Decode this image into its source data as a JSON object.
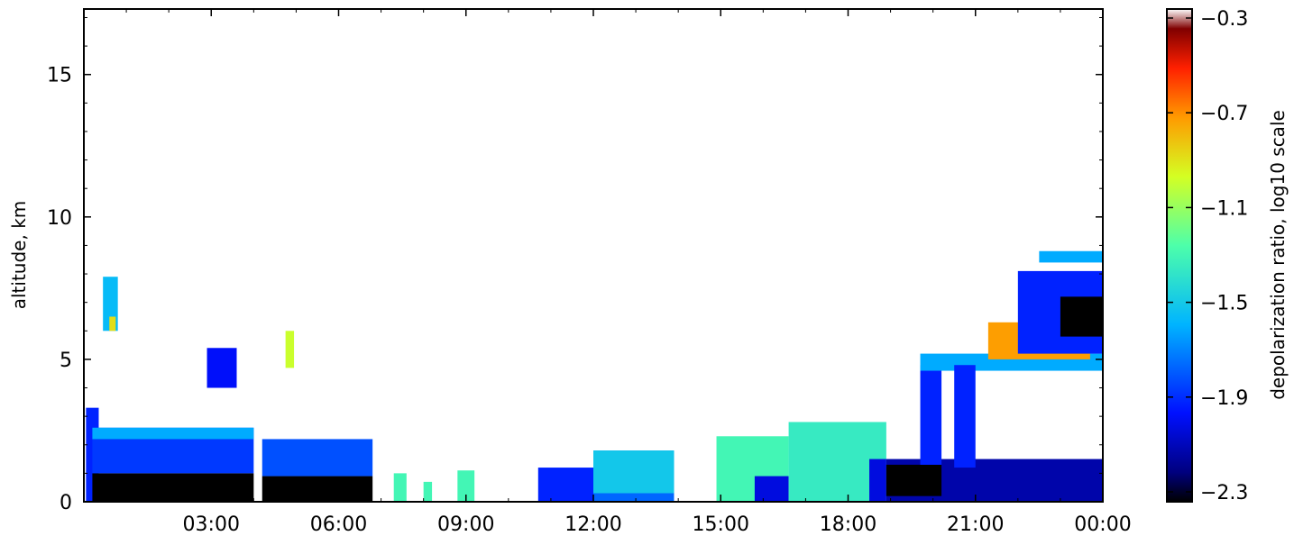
{
  "chart_data": {
    "type": "heatmap",
    "title": "",
    "ylabel": "altitude, km",
    "xlabel": "",
    "xlim": [
      0,
      24
    ],
    "ylim": [
      0,
      17.3
    ],
    "x_ticks": [
      {
        "value": 3,
        "label": "03:00"
      },
      {
        "value": 6,
        "label": "06:00"
      },
      {
        "value": 9,
        "label": "09:00"
      },
      {
        "value": 12,
        "label": "12:00"
      },
      {
        "value": 15,
        "label": "15:00"
      },
      {
        "value": 18,
        "label": "18:00"
      },
      {
        "value": 21,
        "label": "21:00"
      },
      {
        "value": 24,
        "label": "00:00"
      }
    ],
    "y_ticks": [
      {
        "value": 0,
        "label": "0"
      },
      {
        "value": 5,
        "label": "5"
      },
      {
        "value": 10,
        "label": "10"
      },
      {
        "value": 15,
        "label": "15"
      }
    ],
    "colorbar": {
      "label": "depolarization ratio, log10 scale",
      "range": [
        -2.3,
        -0.3
      ],
      "ticks": [
        {
          "value": -0.3,
          "label": "−0.3"
        },
        {
          "value": -0.7,
          "label": "−0.7"
        },
        {
          "value": -1.1,
          "label": "−1.1"
        },
        {
          "value": -1.5,
          "label": "−1.5"
        },
        {
          "value": -1.9,
          "label": "−1.9"
        },
        {
          "value": -2.3,
          "label": "−2.3"
        }
      ],
      "colormap": "jet"
    },
    "grid": false,
    "regions": [
      {
        "x0": 0.05,
        "x1": 0.35,
        "y0": 0,
        "y1": 3.3,
        "v": -1.9
      },
      {
        "x0": 0.2,
        "x1": 4.0,
        "y0": 0,
        "y1": 1.0,
        "v": -2.3
      },
      {
        "x0": 0.2,
        "x1": 4.0,
        "y0": 1.0,
        "y1": 2.6,
        "v": -1.85
      },
      {
        "x0": 0.2,
        "x1": 4.0,
        "y0": 2.2,
        "y1": 2.6,
        "v": -1.6
      },
      {
        "x0": 0.45,
        "x1": 0.8,
        "y0": 6.0,
        "y1": 7.9,
        "v": -1.55
      },
      {
        "x0": 0.6,
        "x1": 0.75,
        "y0": 6.0,
        "y1": 6.5,
        "v": -0.9
      },
      {
        "x0": 2.9,
        "x1": 3.6,
        "y0": 4.0,
        "y1": 5.4,
        "v": -1.95
      },
      {
        "x0": 4.2,
        "x1": 6.8,
        "y0": 0,
        "y1": 0.9,
        "v": -2.3
      },
      {
        "x0": 4.2,
        "x1": 6.8,
        "y0": 0.9,
        "y1": 2.2,
        "v": -1.8
      },
      {
        "x0": 4.75,
        "x1": 4.95,
        "y0": 4.7,
        "y1": 6.0,
        "v": -1.0
      },
      {
        "x0": 7.3,
        "x1": 7.6,
        "y0": 0,
        "y1": 1.0,
        "v": -1.3
      },
      {
        "x0": 8.0,
        "x1": 8.2,
        "y0": 0,
        "y1": 0.7,
        "v": -1.3
      },
      {
        "x0": 8.8,
        "x1": 9.2,
        "y0": 0,
        "y1": 1.1,
        "v": -1.3
      },
      {
        "x0": 10.7,
        "x1": 12.0,
        "y0": 0,
        "y1": 1.2,
        "v": -1.9
      },
      {
        "x0": 12.0,
        "x1": 13.9,
        "y0": 0,
        "y1": 1.8,
        "v": -1.75
      },
      {
        "x0": 12.0,
        "x1": 13.9,
        "y0": 0.3,
        "y1": 1.8,
        "v": -1.5
      },
      {
        "x0": 14.9,
        "x1": 16.6,
        "y0": 0,
        "y1": 2.3,
        "v": -1.3
      },
      {
        "x0": 15.8,
        "x1": 16.6,
        "y0": 0,
        "y1": 0.9,
        "v": -2.0
      },
      {
        "x0": 16.6,
        "x1": 18.9,
        "y0": 0,
        "y1": 2.8,
        "v": -1.35
      },
      {
        "x0": 18.5,
        "x1": 18.9,
        "y0": 0,
        "y1": 1.5,
        "v": -2.0
      },
      {
        "x0": 18.9,
        "x1": 24.0,
        "y0": 0,
        "y1": 1.5,
        "v": -2.1
      },
      {
        "x0": 18.9,
        "x1": 20.2,
        "y0": 0.2,
        "y1": 1.3,
        "v": -2.3
      },
      {
        "x0": 19.7,
        "x1": 20.2,
        "y0": 1.3,
        "y1": 4.8,
        "v": -1.9
      },
      {
        "x0": 19.7,
        "x1": 24.0,
        "y0": 4.6,
        "y1": 5.2,
        "v": -1.6
      },
      {
        "x0": 20.5,
        "x1": 21.0,
        "y0": 1.2,
        "y1": 4.8,
        "v": -1.9
      },
      {
        "x0": 21.3,
        "x1": 23.7,
        "y0": 5.0,
        "y1": 6.3,
        "v": -0.75
      },
      {
        "x0": 22.0,
        "x1": 24.0,
        "y0": 5.2,
        "y1": 8.1,
        "v": -1.9
      },
      {
        "x0": 23.0,
        "x1": 24.0,
        "y0": 5.8,
        "y1": 7.2,
        "v": -2.3
      },
      {
        "x0": 22.5,
        "x1": 24.0,
        "y0": 8.4,
        "y1": 8.8,
        "v": -1.6
      }
    ]
  }
}
